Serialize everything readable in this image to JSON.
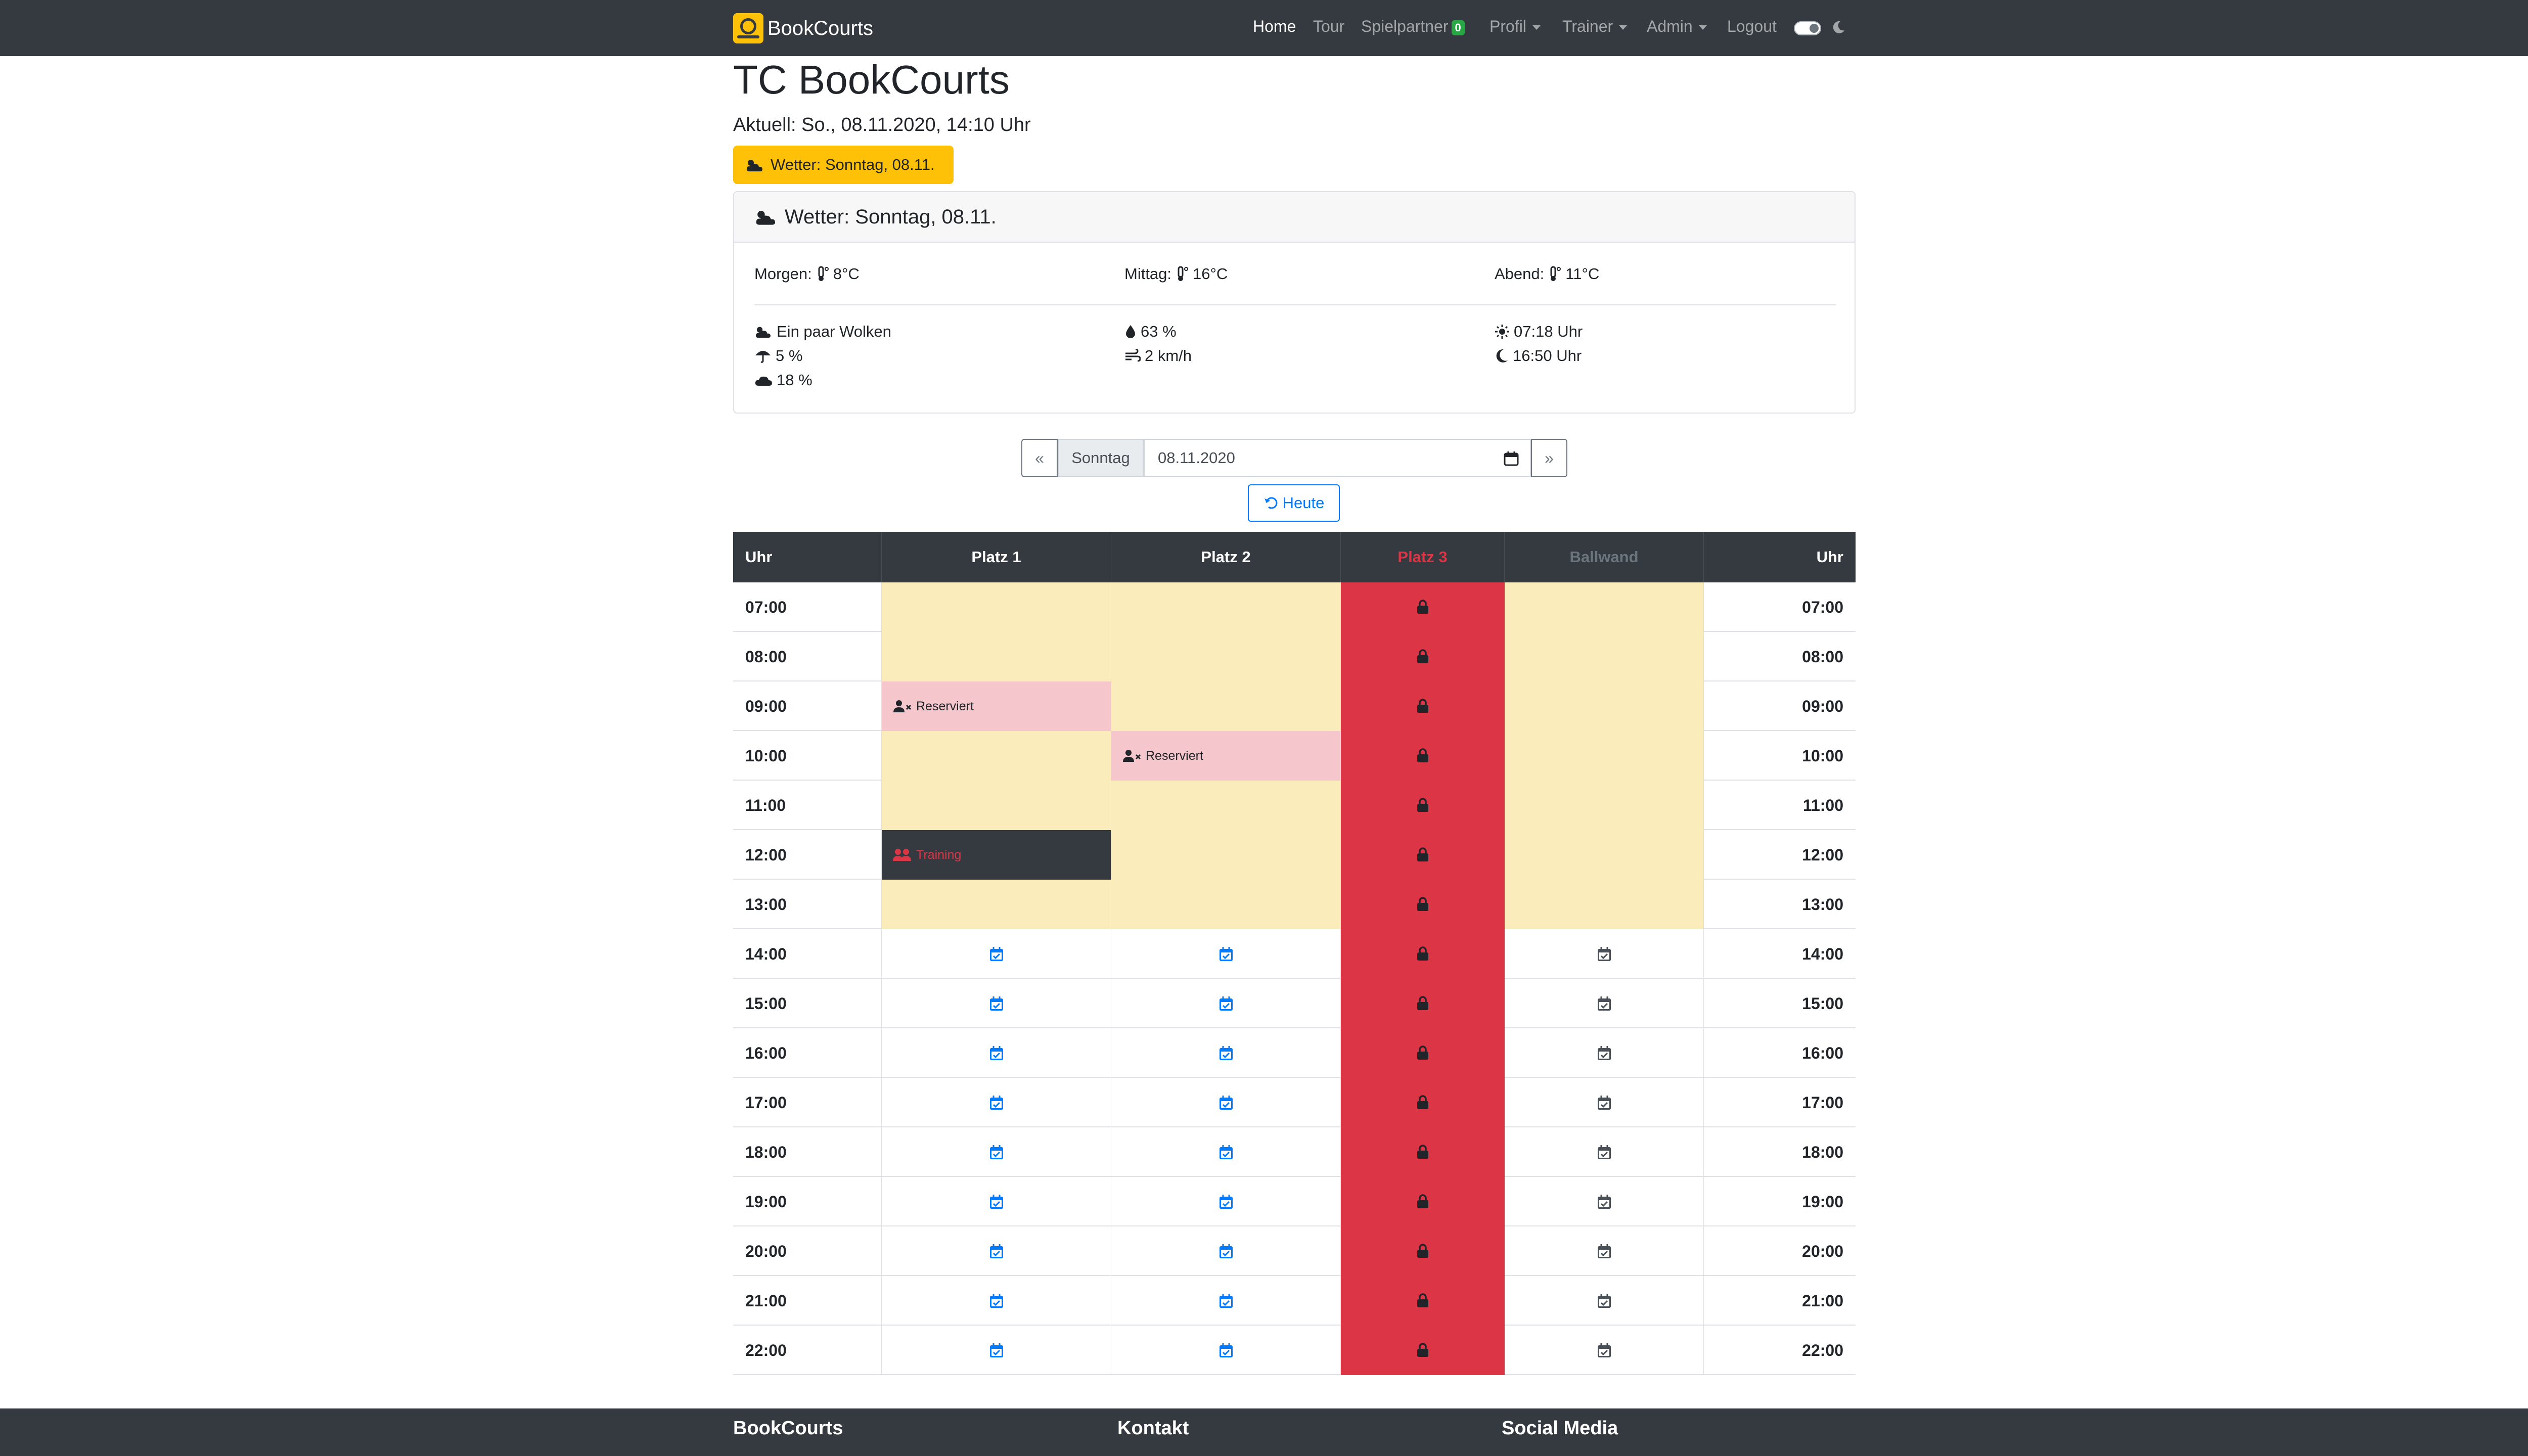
{
  "navbar": {
    "brand": "BookCourts",
    "items": [
      {
        "label": "Home",
        "active": true
      },
      {
        "label": "Tour",
        "active": false
      },
      {
        "label": "Spielpartner",
        "badge": "0"
      },
      {
        "label": "Profil",
        "dropdown": true
      },
      {
        "label": "Trainer",
        "dropdown": true
      },
      {
        "label": "Admin",
        "dropdown": true
      },
      {
        "label": "Logout"
      }
    ],
    "icons": [
      "toggle-switch",
      "moon-icon"
    ]
  },
  "header": {
    "title": "TC BookCourts",
    "current": "Aktuell: So., 08.11.2020, 14:10 Uhr",
    "weather_button": "Wetter: Sonntag, 08.11."
  },
  "weather": {
    "title": "Wetter: Sonntag, 08.11.",
    "morning": "Morgen:",
    "morning_temp": "8°C",
    "noon": "Mittag:",
    "noon_temp": "16°C",
    "evening": "Abend:",
    "evening_temp": "11°C",
    "condition": "Ein paar Wolken",
    "rain": "5 %",
    "clouds": "18 %",
    "humidity": "63 %",
    "wind": "2 km/h",
    "sunrise": "07:18 Uhr",
    "sunset": "16:50 Uhr"
  },
  "date_nav": {
    "prev": "«",
    "next": "»",
    "day": "Sonntag",
    "date": "08.11.2020",
    "today": "Heute"
  },
  "table": {
    "headers": [
      "Uhr",
      "Platz 1",
      "Platz 2",
      "Platz 3",
      "Ballwand",
      "Uhr"
    ],
    "reserved_label": "Reserviert",
    "training_label": "Training",
    "rows": [
      {
        "time": "07:00",
        "cells": [
          "closed",
          "closed",
          "locked",
          "closed"
        ]
      },
      {
        "time": "08:00",
        "cells": [
          "closed",
          "closed",
          "locked",
          "closed"
        ]
      },
      {
        "time": "09:00",
        "cells": [
          "reserved",
          "closed",
          "locked",
          "closed"
        ]
      },
      {
        "time": "10:00",
        "cells": [
          "closed",
          "reserved",
          "locked",
          "closed"
        ]
      },
      {
        "time": "11:00",
        "cells": [
          "closed",
          "closed",
          "locked",
          "closed"
        ]
      },
      {
        "time": "12:00",
        "cells": [
          "training",
          "closed",
          "locked",
          "closed"
        ]
      },
      {
        "time": "13:00",
        "cells": [
          "closed",
          "closed",
          "locked",
          "closed"
        ]
      },
      {
        "time": "14:00",
        "cells": [
          "free",
          "free",
          "locked",
          "free-grey"
        ]
      },
      {
        "time": "15:00",
        "cells": [
          "free",
          "free",
          "locked",
          "free-grey"
        ]
      },
      {
        "time": "16:00",
        "cells": [
          "free",
          "free",
          "locked",
          "free-grey"
        ]
      },
      {
        "time": "17:00",
        "cells": [
          "free",
          "free",
          "locked",
          "free-grey"
        ]
      },
      {
        "time": "18:00",
        "cells": [
          "free",
          "free",
          "locked",
          "free-grey"
        ]
      },
      {
        "time": "19:00",
        "cells": [
          "free",
          "free",
          "locked",
          "free-grey"
        ]
      },
      {
        "time": "20:00",
        "cells": [
          "free",
          "free",
          "locked",
          "free-grey"
        ]
      },
      {
        "time": "21:00",
        "cells": [
          "free",
          "free",
          "locked",
          "free-grey"
        ]
      },
      {
        "time": "22:00",
        "cells": [
          "free",
          "free",
          "locked",
          "free-grey"
        ]
      }
    ]
  },
  "footer": {
    "col1": "BookCourts",
    "col2": "Kontakt",
    "col3": "Social Media"
  },
  "colors": {
    "navbar": "#343a40",
    "warning": "#ffc107",
    "closed": "#faecbb",
    "reserved": "#f5c6cb",
    "locked": "#dc3545",
    "primary": "#007bff",
    "success": "#28a745"
  }
}
